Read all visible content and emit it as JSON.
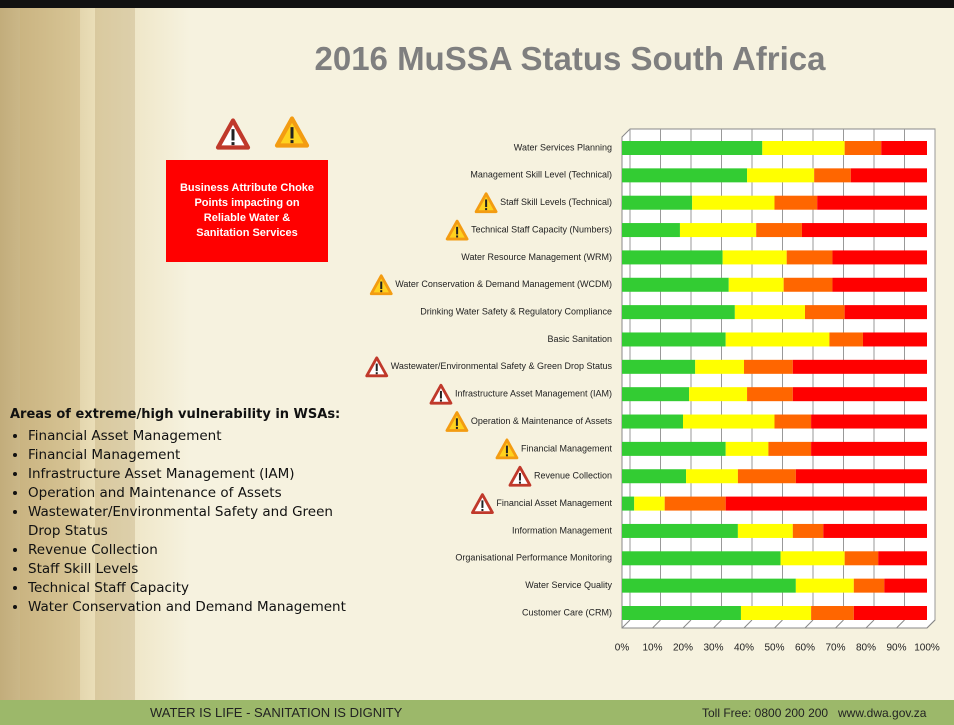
{
  "slide": {
    "title": "2016 MuSSA Status South Africa",
    "callout": "Business Attribute Choke Points impacting on Reliable Water & Sanitation Services",
    "vulnerability": {
      "heading": "Areas of extreme/high vulnerability in WSAs:",
      "items": [
        "Financial Asset Management",
        "Financial Management",
        "Infrastructure Asset Management (IAM)",
        "Operation and Maintenance of Assets",
        "Wastewater/Environmental Safety and Green Drop Status",
        "Revenue Collection",
        "Staff Skill Levels",
        "Technical Staff Capacity",
        "Water Conservation and Demand Management"
      ]
    },
    "footer": {
      "slogan": "WATER IS LIFE - SANITATION IS DIGNITY",
      "phone": "Toll Free: 0800 200 200",
      "website": "www.dwa.gov.za"
    }
  },
  "chart_data": {
    "type": "stacked-bar-horizontal",
    "categories": [
      "Water Services Planning",
      "Management Skill Level (Technical)",
      "Staff Skill Levels (Technical)",
      "Technical Staff Capacity (Numbers)",
      "Water Resource Management (WRM)",
      "Water Conservation & Demand Management (WCDM)",
      "Drinking Water Safety & Regulatory Compliance",
      "Basic Sanitation",
      "Wastewater/Environmental Safety & Green Drop Status",
      "Infrastructure Asset Management (IAM)",
      "Operation & Maintenance of Assets",
      "Financial Management",
      "Revenue Collection",
      "Financial Asset Management",
      "Information Management",
      "Organisational Performance Monitoring",
      "Water Service Quality",
      "Customer Care (CRM)"
    ],
    "series": [
      {
        "color": "#33cc33",
        "values": [
          46,
          41,
          23,
          19,
          33,
          35,
          37,
          34,
          24,
          22,
          20,
          34,
          21,
          4,
          38,
          52,
          57,
          39
        ]
      },
      {
        "color": "#ffff00",
        "values": [
          27,
          22,
          27,
          25,
          21,
          18,
          23,
          34,
          16,
          19,
          30,
          14,
          17,
          10,
          18,
          21,
          19,
          23
        ]
      },
      {
        "color": "#ff6600",
        "values": [
          12,
          12,
          14,
          15,
          15,
          16,
          13,
          11,
          16,
          15,
          12,
          14,
          19,
          20,
          10,
          11,
          10,
          14
        ]
      },
      {
        "color": "#ff0000",
        "values": [
          15,
          25,
          36,
          41,
          31,
          31,
          27,
          21,
          44,
          44,
          38,
          38,
          43,
          66,
          34,
          16,
          14,
          24
        ]
      }
    ],
    "xlim": [
      0,
      100
    ],
    "xticks": [
      {
        "value": 0,
        "label": "0%"
      },
      {
        "value": 10,
        "label": "10%"
      },
      {
        "value": 20,
        "label": "20%"
      },
      {
        "value": 30,
        "label": "30%"
      },
      {
        "value": 40,
        "label": "40%"
      },
      {
        "value": 50,
        "label": "50%"
      },
      {
        "value": 60,
        "label": "60%"
      },
      {
        "value": 70,
        "label": "70%"
      },
      {
        "value": 80,
        "label": "80%"
      },
      {
        "value": 90,
        "label": "90%"
      },
      {
        "value": 100,
        "label": "100%"
      }
    ],
    "grid": true
  }
}
